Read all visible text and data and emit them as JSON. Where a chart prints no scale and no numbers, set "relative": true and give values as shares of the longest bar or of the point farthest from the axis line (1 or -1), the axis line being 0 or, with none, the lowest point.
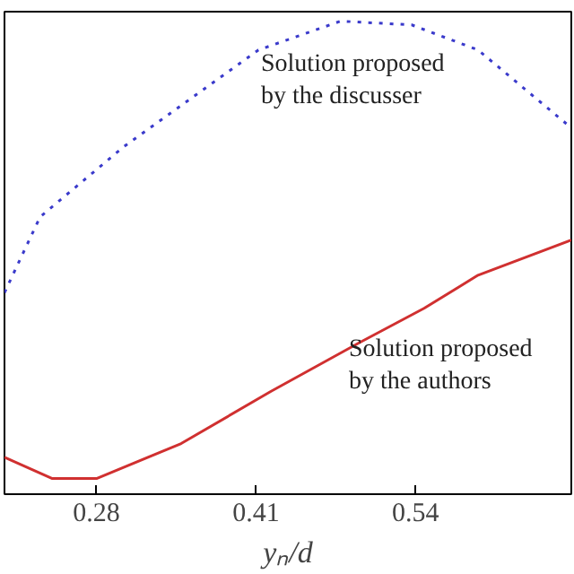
{
  "chart_data": {
    "type": "line",
    "relative": true,
    "xlabel": "yₙ/d",
    "xlim": [
      0.205,
      0.667
    ],
    "xticks": [
      0.28,
      0.41,
      0.54
    ],
    "grid": false,
    "series": [
      {
        "color": "#3a3acb",
        "line_style": "dotted",
        "x": [
          0.205,
          0.234,
          0.302,
          0.412,
          0.479,
          0.537,
          0.591,
          0.663
        ],
        "values": [
          0.426,
          0.586,
          0.734,
          0.939,
          1,
          0.992,
          0.939,
          0.783
        ]
      },
      {
        "color": "#d03030",
        "line_style": "solid",
        "x": [
          0.205,
          0.244,
          0.28,
          0.349,
          0.422,
          0.494,
          0.547,
          0.591,
          0.667
        ],
        "values": [
          0.078,
          0.033,
          0.033,
          0.107,
          0.217,
          0.32,
          0.393,
          0.463,
          0.537
        ]
      }
    ],
    "annotations": [
      "Solution proposed\nby the discusser",
      "Solution proposed\nby the authors"
    ]
  }
}
